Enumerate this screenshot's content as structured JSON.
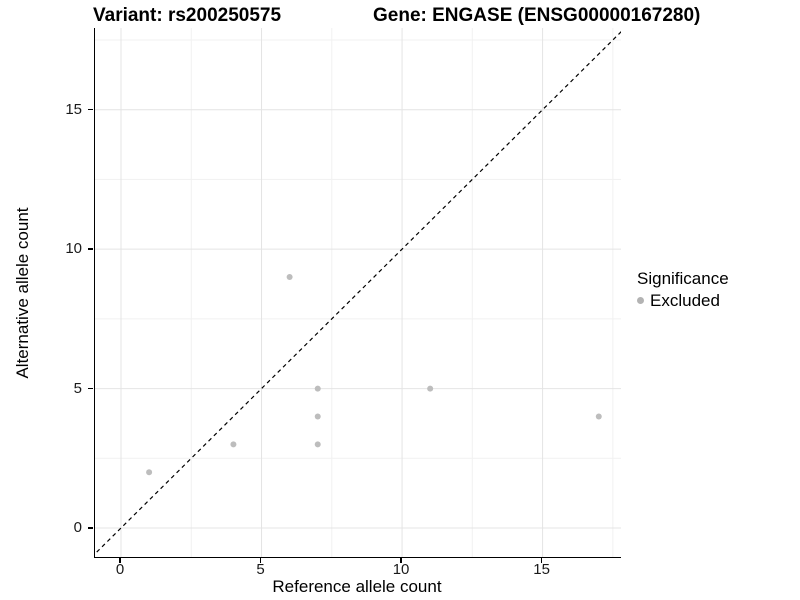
{
  "chart_data": {
    "type": "scatter",
    "titles": {
      "variant": "Variant: rs200250575",
      "gene": "Gene: ENGASE (ENSG00000167280)"
    },
    "xlabel": "Reference allele count",
    "ylabel": "Alternative allele count",
    "xlim": [
      -0.925,
      17.79
    ],
    "ylim": [
      -1.04,
      17.93
    ],
    "x_ticks": [
      0,
      5,
      10,
      15
    ],
    "y_ticks": [
      0,
      5,
      10,
      15
    ],
    "x_minor_ticks": [
      2.5,
      7.5,
      12.5,
      17.5
    ],
    "y_minor_ticks": [
      2.5,
      7.5,
      12.5,
      17.5
    ],
    "grid": "major+minor",
    "identity_line": {
      "style": "dashed",
      "slope": 1,
      "intercept": 0
    },
    "series": [
      {
        "name": "Excluded",
        "color": "#bdbdbd",
        "points": [
          [
            1,
            2
          ],
          [
            4,
            3
          ],
          [
            6,
            9
          ],
          [
            7,
            3
          ],
          [
            7,
            4
          ],
          [
            7,
            5
          ],
          [
            11,
            5
          ],
          [
            17,
            4
          ]
        ]
      }
    ],
    "legend": {
      "title": "Significance",
      "position": "right",
      "items": [
        {
          "label": "Excluded",
          "color": "#b3b3b3"
        }
      ]
    },
    "colors": {
      "grid_major": "#e4e4e4",
      "grid_minor": "#f1f1f1",
      "axis_line": "#000000",
      "identity_line": "#000000",
      "point": "#bdbdbd"
    }
  }
}
